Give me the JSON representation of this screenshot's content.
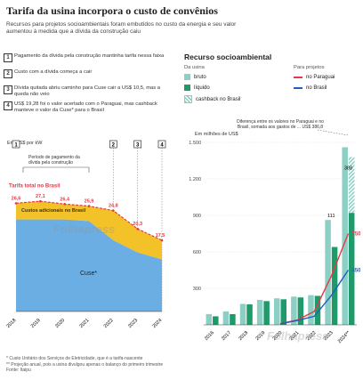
{
  "header": {
    "title": "Tarifa da usina incorpora o custo de convênios",
    "subtitle": "Recursos para projetos socioambientais foram embutidos no custo da energia e seu valor aumentou à medida que a dívida da construção caiu"
  },
  "notes": [
    {
      "num": "1",
      "text": "Pagamento da dívida pela construção mantinha tarifa nessa faixa"
    },
    {
      "num": "2",
      "text": "Custo com a dívida começa a cair"
    },
    {
      "num": "3",
      "text": "Dívida quitada abriu caminho para Cuse cair a US$ 10,5, mas a queda não veio"
    },
    {
      "num": "4",
      "text": "US$ 19,28 foi o valor acertado com o Paraguai, mas cashback manteve o valor da Cuse* para o Brasil"
    }
  ],
  "colors": {
    "cuse": "#6aaee3",
    "adicionais": "#f3c229",
    "tarifa": "#e63946",
    "bruto": "#8ccfc4",
    "liquido": "#1f9a6b",
    "paraguai": "#e63946",
    "brasil": "#1f5fbf"
  },
  "left_chart": {
    "unit": "Em US$ por kW",
    "period_label": "Período de pagamento da dívida pela construção",
    "tarifa_label": "Tarifa total no Brasil",
    "adicionais_label": "Custos adicionais no Brasil",
    "cuse_label": "Cuse*",
    "markers": [
      "1",
      "2",
      "3",
      "4"
    ]
  },
  "right_chart": {
    "title": "Recurso socioambiental",
    "unit": "Em milhões de US$",
    "legend_usina_head": "Da usina",
    "legend_projetos_head": "Para projetos",
    "legend": {
      "bruto": "bruto",
      "liquido": "líquido",
      "cashback": "cashback no Brasil",
      "paraguai": "no Paraguai",
      "brasil": "no Brasil"
    },
    "annotation": "Diferença entre os valores no Paraguai e no Brasil, somada aos gastos de ... US$ 386,8"
  },
  "footer": {
    "line1": "* Custo Unitário dos Serviços de Eletricidade, que é a tarifa-nascente",
    "line2": "** Projeção anual, pois a usina divulgou apenas o balanço do primeiro trimestre",
    "source": "Fonte: Itaipu"
  },
  "chart_data": [
    {
      "type": "area",
      "x": [
        "2018",
        "2019",
        "2020",
        "2021",
        "2022",
        "2023",
        "2024"
      ],
      "series": [
        {
          "name": "Cuse*",
          "values": [
            22.6,
            22.6,
            22.6,
            22.2,
            17.5,
            14.5,
            12.8
          ]
        },
        {
          "name": "Custos adicionais no Brasil",
          "values": [
            26.6,
            27.1,
            26.4,
            25.9,
            24.8,
            20.3,
            17.5
          ]
        },
        {
          "name": "Tarifa total no Brasil",
          "values": [
            26.6,
            27.1,
            26.4,
            25.9,
            24.8,
            20.3,
            17.5
          ]
        }
      ],
      "data_labels": [
        "26,6",
        "27,1",
        "26,4",
        "25,9",
        "24,8",
        "20,3",
        "17,5"
      ],
      "ylim": [
        0,
        35
      ],
      "grid": false
    },
    {
      "type": "bar",
      "categories": [
        "2016",
        "2017",
        "2018",
        "2019",
        "2020",
        "2021",
        "2022",
        "2023",
        "2024**"
      ],
      "series": [
        {
          "name": "bruto",
          "values": [
            88,
            110,
            172,
            205,
            218,
            232,
            244,
            862,
            1460
          ]
        },
        {
          "name": "líquido",
          "values": [
            70,
            88,
            168,
            195,
            210,
            225,
            238,
            640,
            920
          ]
        },
        {
          "name": "cashback no Brasil",
          "values": [
            0,
            0,
            0,
            0,
            0,
            0,
            0,
            0,
            1380
          ]
        },
        {
          "name": "no Paraguai",
          "values": [
            0,
            0,
            0,
            0,
            10,
            40,
            110,
            400,
            750
          ]
        },
        {
          "name": "no Brasil",
          "values": [
            0,
            0,
            0,
            0,
            8,
            35,
            70,
            240,
            450
          ]
        }
      ],
      "yticks": [
        "300",
        "600",
        "900",
        "1.200",
        "1.500"
      ],
      "data_labels": [
        "111",
        "750",
        "450",
        "388"
      ],
      "ylim": [
        0,
        1500
      ],
      "grid": true
    }
  ]
}
